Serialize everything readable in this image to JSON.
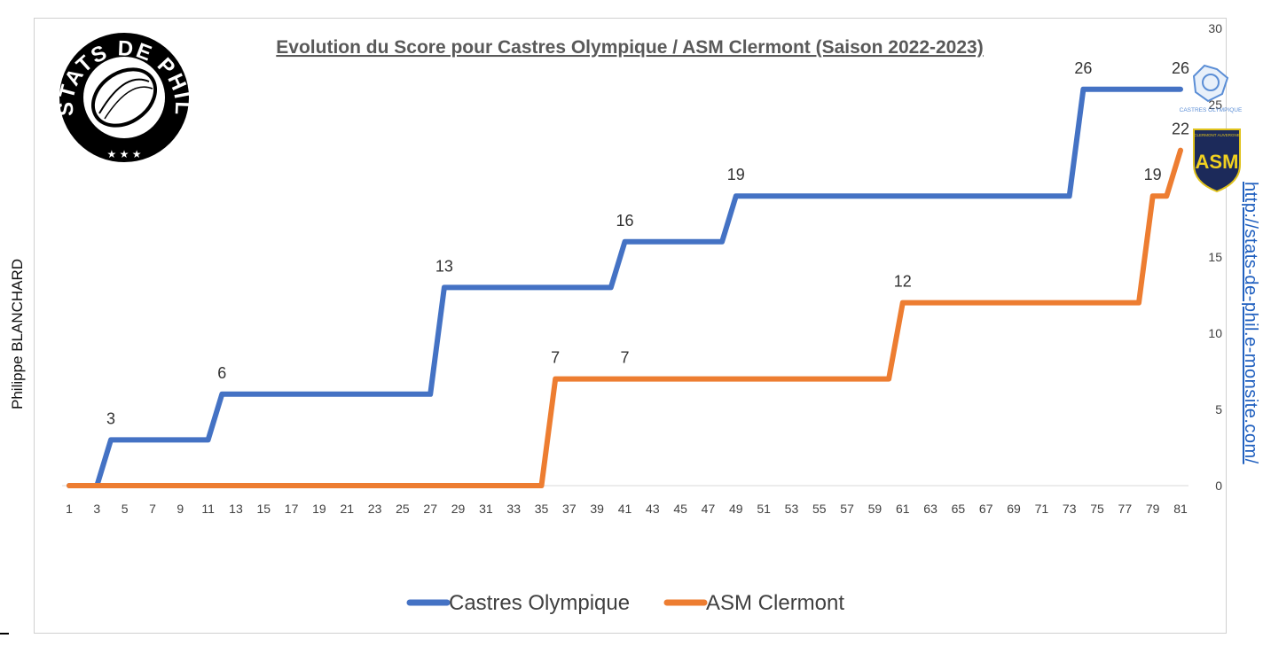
{
  "side": {
    "author": "Philippe BLANCHARD",
    "url": "http://stats-de-phil.e-monsite.com/"
  },
  "logo": {
    "text": "STATS DE PHIL",
    "stars": "★ ★ ★"
  },
  "badges": {
    "castres": "CASTRES OLYMPIQUE",
    "asm": "ASM",
    "asm_top": "CLERMONT AUVERGNE"
  },
  "chart_data": {
    "type": "line",
    "title": "Evolution du Score pour Castres Olympique / ASM Clermont (Saison 2022-2023)",
    "xlabel": "",
    "ylabel": "",
    "xlim": [
      1,
      81
    ],
    "ylim": [
      0,
      30
    ],
    "y_axis_side": "right",
    "yticks": [
      0,
      5,
      10,
      15,
      20,
      25,
      30
    ],
    "xticks": [
      1,
      3,
      5,
      7,
      9,
      11,
      13,
      15,
      17,
      19,
      21,
      23,
      25,
      27,
      29,
      31,
      33,
      35,
      37,
      39,
      41,
      43,
      45,
      47,
      49,
      51,
      53,
      55,
      57,
      59,
      61,
      63,
      65,
      67,
      69,
      71,
      73,
      75,
      77,
      79,
      81
    ],
    "grid": false,
    "legend": "bottom",
    "series": [
      {
        "name": "Castres Olympique",
        "color": "#4472C4",
        "points": [
          [
            1,
            0
          ],
          [
            3,
            0
          ],
          [
            4,
            3
          ],
          [
            11,
            3
          ],
          [
            12,
            6
          ],
          [
            27,
            6
          ],
          [
            28,
            13
          ],
          [
            40,
            13
          ],
          [
            41,
            16
          ],
          [
            48,
            16
          ],
          [
            49,
            19
          ],
          [
            73,
            19
          ],
          [
            74,
            26
          ],
          [
            81,
            26
          ]
        ],
        "labels": [
          [
            4,
            3,
            "3"
          ],
          [
            12,
            6,
            "6"
          ],
          [
            28,
            13,
            "13"
          ],
          [
            41,
            16,
            "16"
          ],
          [
            49,
            19,
            "19"
          ],
          [
            74,
            26,
            "26"
          ],
          [
            81,
            26,
            "26"
          ]
        ]
      },
      {
        "name": "ASM Clermont",
        "color": "#ED7D31",
        "points": [
          [
            1,
            0
          ],
          [
            35,
            0
          ],
          [
            36,
            7
          ],
          [
            60,
            7
          ],
          [
            61,
            12
          ],
          [
            78,
            12
          ],
          [
            79,
            19
          ],
          [
            80,
            19
          ],
          [
            81,
            22
          ]
        ],
        "labels": [
          [
            36,
            7,
            "7"
          ],
          [
            41,
            7,
            "7"
          ],
          [
            61,
            12,
            "12"
          ],
          [
            79,
            19,
            "19"
          ],
          [
            81,
            22,
            "22"
          ]
        ]
      }
    ]
  }
}
